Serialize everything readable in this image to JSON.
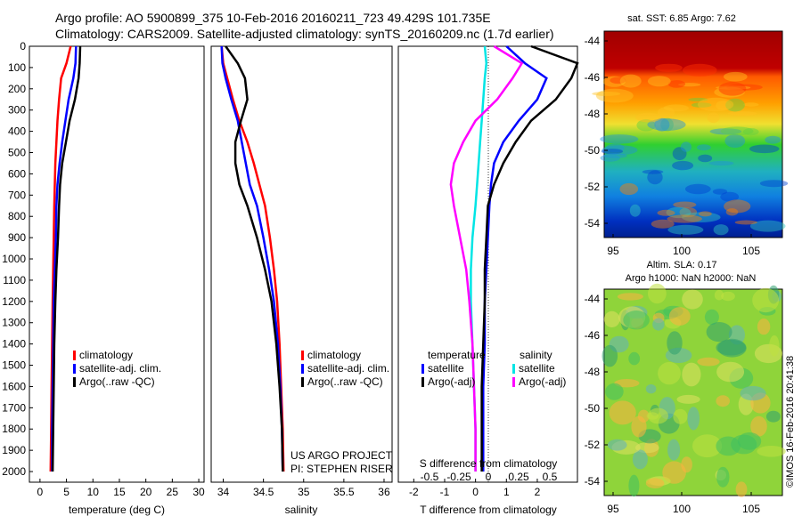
{
  "header": {
    "line1": "Argo profile: AO 5900899_375 10-Feb-2016 20160211_723 49.429S 101.735E",
    "line2": "Climatology: CARS2009. Satellite-adjusted climatology: synTS_20160209.nc (1.7d earlier)"
  },
  "colors": {
    "climatology": "#ff0000",
    "satellite": "#0000ff",
    "argo": "#000000",
    "salinity_satellite": "#00e5e5",
    "salinity_argo": "#ff00ff"
  },
  "chart_data": [
    {
      "type": "line",
      "panel": "temperature",
      "xlabel": "temperature (deg C)",
      "ylabel": "",
      "xlim": [
        -2,
        31
      ],
      "ylim": [
        2050,
        0
      ],
      "xticks": [
        "0",
        "5",
        "10",
        "15",
        "20",
        "25",
        "30"
      ],
      "yticks": [
        "0",
        "100",
        "200",
        "300",
        "400",
        "500",
        "600",
        "700",
        "800",
        "900",
        "1000",
        "1100",
        "1200",
        "1300",
        "1400",
        "1500",
        "1600",
        "1700",
        "1800",
        "1900",
        "2000"
      ],
      "legend": [
        "climatology",
        "satellite-adj. clim.",
        "Argo(..raw -QC)"
      ],
      "legend_position": "bottom-right",
      "series": [
        {
          "name": "climatology",
          "x": [
            5.8,
            5.0,
            4.0,
            3.6,
            3.3,
            3.1,
            2.9,
            2.8,
            2.7,
            2.6,
            2.5,
            2.4,
            2.3,
            2.2,
            2.1,
            2.0
          ],
          "y": [
            0,
            80,
            150,
            250,
            350,
            450,
            550,
            650,
            750,
            900,
            1050,
            1200,
            1400,
            1600,
            1800,
            2000
          ]
        },
        {
          "name": "satellite-adj. clim.",
          "x": [
            6.8,
            6.7,
            6.3,
            5.4,
            4.8,
            4.2,
            3.7,
            3.3,
            3.1,
            3.0,
            2.8,
            2.6,
            2.5,
            2.4,
            2.3,
            2.3
          ],
          "y": [
            0,
            80,
            150,
            250,
            350,
            450,
            550,
            650,
            750,
            900,
            1050,
            1200,
            1400,
            1600,
            1800,
            2000
          ]
        },
        {
          "name": "Argo(..raw -QC)",
          "x": [
            7.6,
            7.5,
            7.3,
            6.6,
            5.6,
            4.9,
            4.2,
            3.8,
            3.6,
            3.4,
            3.1,
            2.9,
            2.7,
            2.6,
            2.5,
            2.4
          ],
          "y": [
            0,
            80,
            150,
            250,
            350,
            450,
            550,
            650,
            750,
            900,
            1050,
            1200,
            1400,
            1600,
            1800,
            2000
          ]
        }
      ]
    },
    {
      "type": "line",
      "panel": "salinity",
      "xlabel": "salinity",
      "xlim": [
        33.85,
        36.1
      ],
      "ylim": [
        2050,
        0
      ],
      "xticks": [
        "34",
        "34.5",
        "35",
        "35.5",
        "36"
      ],
      "legend": [
        "climatology",
        "satellite-adj. clim.",
        "Argo(..raw -QC)"
      ],
      "legend_position": "bottom-right",
      "annotation": [
        "US ARGO PROJECT",
        "PI: STEPHEN RISER"
      ],
      "series": [
        {
          "name": "climatology",
          "x": [
            33.98,
            34.0,
            34.05,
            34.12,
            34.2,
            34.3,
            34.38,
            34.45,
            34.52,
            34.58,
            34.63,
            34.67,
            34.7,
            34.72,
            34.74,
            34.75
          ],
          "y": [
            0,
            80,
            150,
            250,
            350,
            450,
            550,
            650,
            750,
            900,
            1050,
            1200,
            1400,
            1600,
            1800,
            2000
          ]
        },
        {
          "name": "satellite-adj. clim.",
          "x": [
            33.98,
            33.99,
            34.03,
            34.1,
            34.18,
            34.23,
            34.28,
            34.33,
            34.42,
            34.5,
            34.57,
            34.63,
            34.68,
            34.71,
            34.73,
            34.74
          ],
          "y": [
            0,
            80,
            150,
            250,
            350,
            450,
            550,
            650,
            750,
            900,
            1050,
            1200,
            1400,
            1600,
            1800,
            2000
          ]
        },
        {
          "name": "Argo(..raw -QC)",
          "x": [
            34.03,
            34.18,
            34.27,
            34.3,
            34.22,
            34.15,
            34.15,
            34.2,
            34.3,
            34.42,
            34.52,
            34.6,
            34.66,
            34.7,
            34.73,
            34.74
          ],
          "y": [
            0,
            80,
            150,
            250,
            350,
            450,
            550,
            650,
            750,
            900,
            1050,
            1200,
            1400,
            1600,
            1800,
            2000
          ]
        }
      ]
    },
    {
      "type": "line",
      "panel": "difference",
      "xlabel": "T difference from climatology",
      "xlabel_top": "S difference from climatology",
      "xlim": [
        -2.5,
        3.3
      ],
      "ylim": [
        2050,
        0
      ],
      "xticks": [
        "-2",
        "-1",
        "0",
        "1",
        "2"
      ],
      "xticks_top": [
        "-0.5",
        "-0.25",
        "0",
        "0.25",
        "0.5"
      ],
      "legend_titles": [
        "temperature",
        "salinity"
      ],
      "legend": [
        "satellite",
        "Argo(-adj)",
        "satellite",
        "Argo(-adj)"
      ],
      "series": [
        {
          "name": "satellite",
          "group": "temperature",
          "x": [
            1.0,
            1.6,
            2.3,
            2.0,
            1.4,
            0.9,
            0.6,
            0.5,
            0.45,
            0.4,
            0.35,
            0.3,
            0.3,
            0.25,
            0.25,
            0.25
          ],
          "y": [
            0,
            80,
            150,
            250,
            350,
            450,
            550,
            650,
            750,
            900,
            1050,
            1200,
            1400,
            1600,
            1800,
            2000
          ]
        },
        {
          "name": "Argo(-adj)",
          "group": "temperature",
          "x": [
            1.8,
            3.3,
            3.1,
            2.6,
            1.8,
            1.3,
            0.9,
            0.6,
            0.4,
            0.35,
            0.3,
            0.3,
            0.25,
            0.2,
            0.2,
            0.2
          ],
          "y": [
            0,
            80,
            150,
            250,
            350,
            450,
            550,
            650,
            750,
            900,
            1050,
            1200,
            1400,
            1600,
            1800,
            2000
          ]
        },
        {
          "name": "satellite",
          "group": "salinity",
          "x": [
            0.3,
            0.35,
            0.3,
            0.25,
            0.2,
            0.15,
            0.1,
            0.05,
            0.0,
            -0.1,
            -0.15,
            -0.15,
            -0.1,
            -0.05,
            0.0,
            0.0
          ],
          "y": [
            0,
            80,
            150,
            250,
            350,
            450,
            550,
            650,
            750,
            900,
            1050,
            1200,
            1400,
            1600,
            1800,
            2000
          ]
        },
        {
          "name": "Argo(-adj)",
          "group": "salinity",
          "x": [
            0.6,
            1.5,
            1.2,
            0.7,
            0.0,
            -0.4,
            -0.7,
            -0.8,
            -0.7,
            -0.5,
            -0.3,
            -0.2,
            -0.1,
            -0.05,
            0.0,
            0.0
          ],
          "y": [
            0,
            80,
            150,
            250,
            350,
            450,
            550,
            650,
            750,
            900,
            1050,
            1200,
            1400,
            1600,
            1800,
            2000
          ]
        }
      ]
    },
    {
      "type": "heatmap",
      "panel": "sst",
      "title": "sat. SST: 6.85 Argo: 7.62",
      "xticks": [
        "95",
        "100",
        "105"
      ],
      "yticks": [
        "-44",
        "-46",
        "-48",
        "-50",
        "-52",
        "-54"
      ]
    },
    {
      "type": "heatmap",
      "panel": "sla",
      "title_line1": "Altim. SLA: 0.17",
      "title_line2": "Argo h1000: NaN h2000: NaN",
      "xticks": [
        "95",
        "100",
        "105"
      ],
      "yticks": [
        "-44",
        "-46",
        "-48",
        "-50",
        "-52",
        "-54"
      ],
      "watermark": "©IMOS 16-Feb-2016 20:41:38"
    }
  ]
}
